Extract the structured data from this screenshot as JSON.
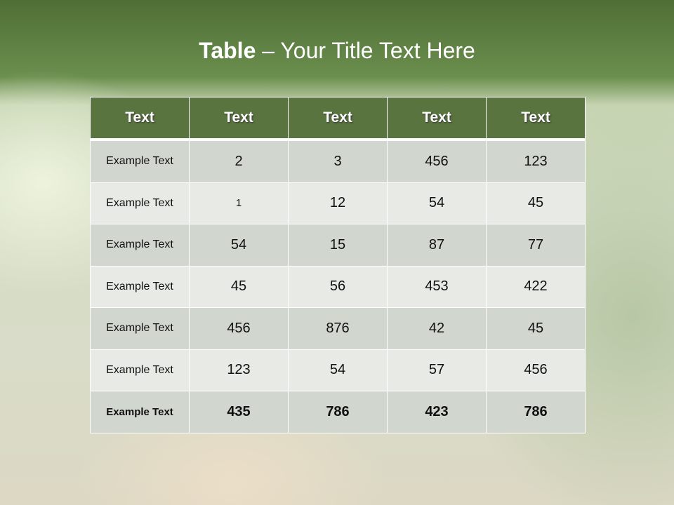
{
  "slide": {
    "title_bold": "Table",
    "title_rest": " – Your Title Text Here"
  },
  "table": {
    "headers": [
      "Text",
      "Text",
      "Text",
      "Text",
      "Text"
    ],
    "rows": [
      [
        "Example Text",
        "2",
        "3",
        "456",
        "123"
      ],
      [
        "Example Text",
        "1",
        "12",
        "54",
        "45"
      ],
      [
        "Example Text",
        "54",
        "15",
        "87",
        "77"
      ],
      [
        "Example Text",
        "45",
        "56",
        "453",
        "422"
      ],
      [
        "Example Text",
        "456",
        "876",
        "42",
        "45"
      ],
      [
        "Example Text",
        "123",
        "54",
        "57",
        "456"
      ],
      [
        "Example Text",
        "435",
        "786",
        "423",
        "786"
      ]
    ]
  },
  "colors": {
    "header_bg": "#5a743f",
    "row_dark": "#d1d6cf",
    "row_light": "#e8eae5"
  }
}
